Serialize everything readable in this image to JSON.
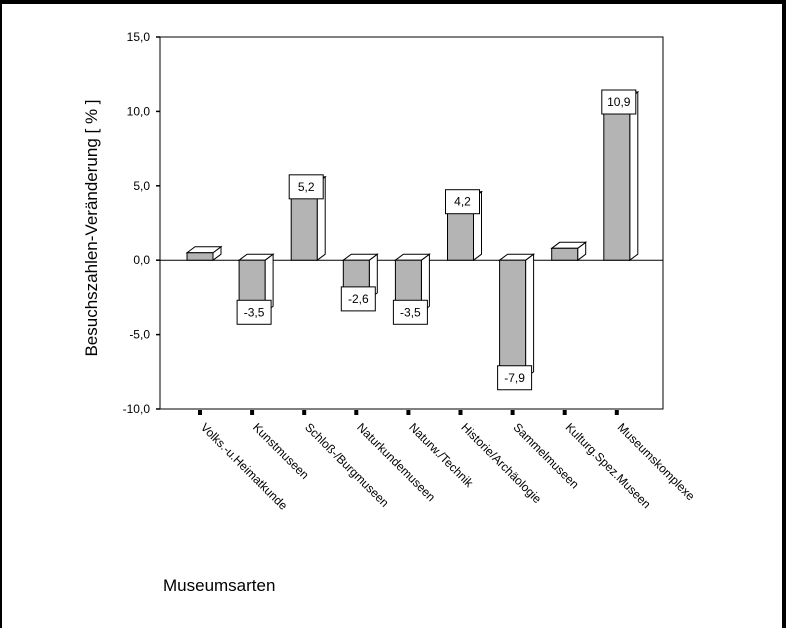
{
  "chart_data": {
    "type": "bar",
    "title": "",
    "xlabel": "Museumsarten",
    "ylabel": "Besuchszahlen-Veränderung [ % ]",
    "categories": [
      "Volks.-u.Heimatkunde",
      "Kunstmuseen",
      "Schloß-/Burgmuseen",
      "Naturkundemuseen",
      "Naturw./Technik",
      "Historie/Archäologie",
      "Sammelmuseen",
      "Kulturg.Spez.Museen",
      "Museumskomplexe"
    ],
    "values": [
      0.5,
      -3.5,
      5.2,
      -2.6,
      -3.5,
      4.2,
      -7.9,
      0.8,
      10.9
    ],
    "data_labels": [
      "",
      "-3,5",
      "5,2",
      "-2,6",
      "-3,5",
      "4,2",
      "-7,9",
      "",
      "10,9"
    ],
    "ylim": [
      -10,
      15
    ],
    "yticks": [
      -10,
      -5,
      0,
      5,
      10,
      15
    ],
    "ytick_labels": [
      "-10,0",
      "-5,0",
      "0,0",
      "5,0",
      "10,0",
      "15,0"
    ],
    "grid": false,
    "legend": "none",
    "colors": {
      "bar_front": "#b4b4b4",
      "bar_side": "#ffffff",
      "axis": "#000000"
    }
  }
}
